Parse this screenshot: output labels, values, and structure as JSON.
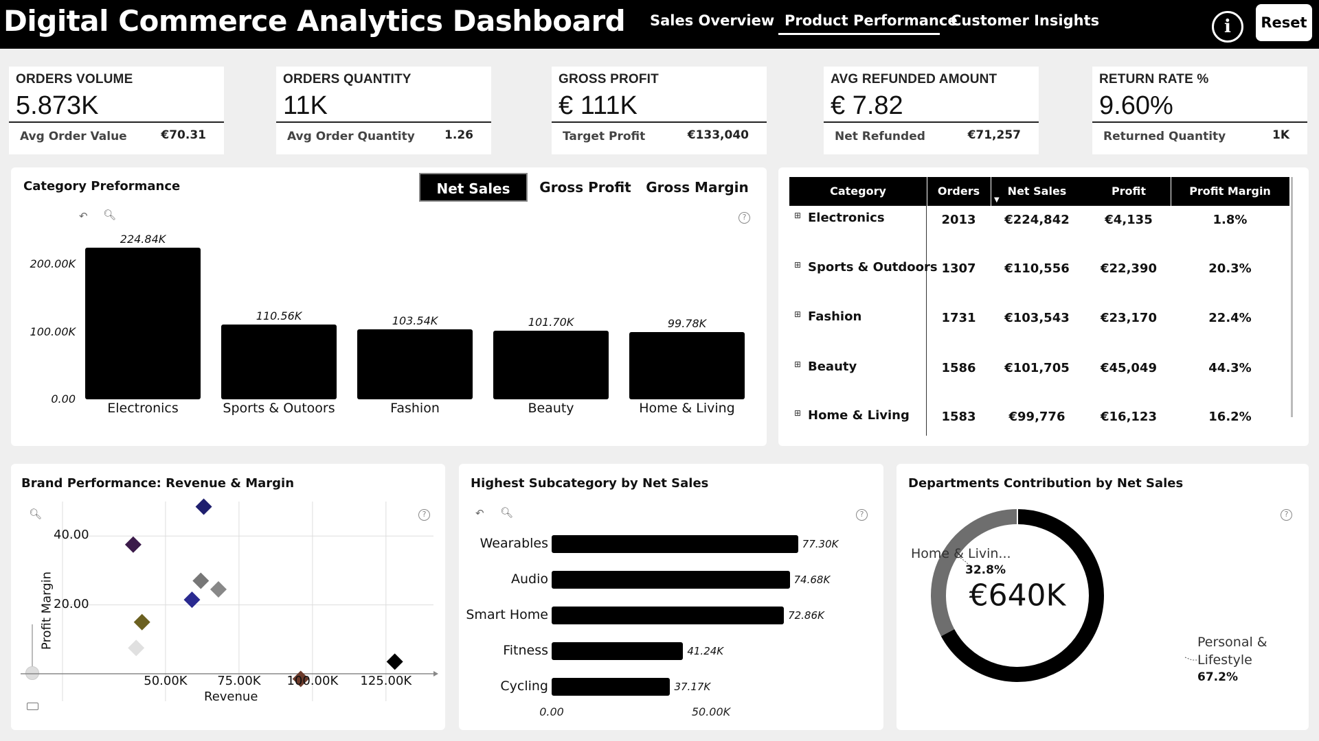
{
  "header": {
    "title": "Digital Commerce Analytics Dashboard",
    "tabs": [
      {
        "label": "Sales Overview"
      },
      {
        "label": "Product Performance"
      },
      {
        "label": "Customer Insights"
      }
    ],
    "active_tab": "Product Performance",
    "info_icon": "info-icon",
    "reset_label": "Reset"
  },
  "kpis": [
    {
      "label": "ORDERS VOLUME",
      "value": "5.873K",
      "sub_label": "Avg Order Value",
      "sub_value": "€70.31"
    },
    {
      "label": "ORDERS QUANTITY",
      "value": "11K",
      "sub_label": "Avg Order Quantity",
      "sub_value": "1.26"
    },
    {
      "label": "GROSS PROFIT",
      "value": "€ 111K",
      "sub_label": "Target Profit",
      "sub_value": "€133,040"
    },
    {
      "label": "AVG REFUNDED AMOUNT",
      "value": "€ 7.82",
      "sub_label": "Net Refunded",
      "sub_value": "€71,257"
    },
    {
      "label": "RETURN RATE %",
      "value": "9.60%",
      "sub_label": "Returned Quantity",
      "sub_value": "1K"
    }
  ],
  "category_panel": {
    "title": "Category Preformance",
    "toggles": [
      "Net Sales",
      "Gross Profit",
      "Gross Margin"
    ],
    "active_toggle": "Net Sales"
  },
  "category_table": {
    "columns": [
      "Category",
      "Orders",
      "Net Sales",
      "Profit",
      "Profit Margin"
    ],
    "sorted_column": "Net Sales",
    "rows": [
      {
        "category": "Electronics",
        "orders": "2013",
        "net_sales": "€224,842",
        "profit": "€4,135",
        "margin": "1.8%"
      },
      {
        "category": "Sports & Outdoors",
        "orders": "1307",
        "net_sales": "€110,556",
        "profit": "€22,390",
        "margin": "20.3%"
      },
      {
        "category": "Fashion",
        "orders": "1731",
        "net_sales": "€103,543",
        "profit": "€23,170",
        "margin": "22.4%"
      },
      {
        "category": "Beauty",
        "orders": "1586",
        "net_sales": "€101,705",
        "profit": "€45,049",
        "margin": "44.3%"
      },
      {
        "category": "Home & Living",
        "orders": "1583",
        "net_sales": "€99,776",
        "profit": "€16,123",
        "margin": "16.2%"
      }
    ]
  },
  "brand_panel": {
    "title": "Brand Performance: Revenue & Margin"
  },
  "subcategory_panel": {
    "title": "Highest Subcategory by Net Sales"
  },
  "department_panel": {
    "title": "Departments Contribution by Net Sales"
  },
  "chart_data": [
    {
      "type": "bar",
      "categories": [
        "Electronics",
        "Sports & Outoors",
        "Fashion",
        "Beauty",
        "Home & Living"
      ],
      "values": [
        224.84,
        110.56,
        103.54,
        101.7,
        99.78
      ],
      "value_labels": [
        "224.84K",
        "110.56K",
        "103.54K",
        "101.70K",
        "99.78K"
      ],
      "ylim": [
        0,
        230
      ],
      "y_ticks": [
        0,
        100,
        200
      ],
      "y_tick_labels": [
        "0.00",
        "100.00K",
        "200.00K"
      ]
    },
    {
      "type": "scatter",
      "xlabel": "Revenue",
      "ylabel": "Profit Margin",
      "x_ticks": [
        50,
        75,
        100,
        125
      ],
      "x_tick_labels": [
        "50.00K",
        "75.00K",
        "100.00K",
        "125.00K"
      ],
      "y_ticks": [
        20,
        40
      ],
      "y_tick_labels": [
        "20.00",
        "40.00"
      ],
      "xlim": [
        25,
        140
      ],
      "ylim": [
        0,
        50
      ],
      "points": [
        {
          "x": 63,
          "y": 48.5,
          "color": "#1f1f6e"
        },
        {
          "x": 39,
          "y": 37.5,
          "color": "#3b1a4a"
        },
        {
          "x": 62,
          "y": 27,
          "color": "#777777"
        },
        {
          "x": 68,
          "y": 24.5,
          "color": "#888888"
        },
        {
          "x": 59,
          "y": 21.5,
          "color": "#2a2a90"
        },
        {
          "x": 42,
          "y": 15,
          "color": "#6b6020"
        },
        {
          "x": 40,
          "y": 7.5,
          "color": "#e0e0e0"
        },
        {
          "x": 96,
          "y": -1.5,
          "color": "#6b3a2a"
        },
        {
          "x": 128,
          "y": 3.5,
          "color": "#000000"
        }
      ]
    },
    {
      "type": "bar",
      "orientation": "horizontal",
      "categories": [
        "Wearables",
        "Audio",
        "Smart Home",
        "Fitness",
        "Cycling"
      ],
      "values": [
        77.3,
        74.68,
        72.86,
        41.24,
        37.17
      ],
      "value_labels": [
        "77.30K",
        "74.68K",
        "72.86K",
        "41.24K",
        "37.17K"
      ],
      "x_ticks": [
        0,
        50
      ],
      "x_tick_labels": [
        "0.00",
        "50.00K"
      ]
    },
    {
      "type": "pie",
      "center_label": "€640K",
      "slices": [
        {
          "name": "Home & Livin...",
          "percent": 32.8,
          "percent_label": "32.8%",
          "color": "#6e6e6e"
        },
        {
          "name": "Personal & Lifestyle",
          "name_lines": [
            "Personal &",
            "Lifestyle"
          ],
          "percent": 67.2,
          "percent_label": "67.2%",
          "color": "#000000"
        }
      ]
    }
  ]
}
